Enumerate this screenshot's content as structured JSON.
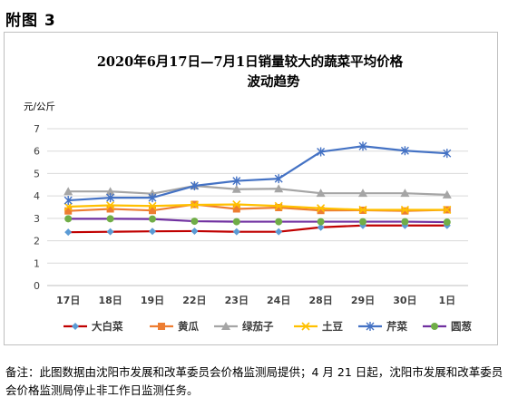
{
  "figure_label": "附图 3",
  "note": "备注：此图数据由沈阳市发展和改革委员会价格监测局提供；4 月 21 日起，沈阳市发展和改革委员会价格监测局停止非工作日监测任务。",
  "chart_data": {
    "type": "line",
    "title_line1": "2020年6月17日—7月1日销量较大的蔬菜平均价格",
    "title_line2": "波动趋势",
    "ylabel": "元/公斤",
    "xlabel": "",
    "ylim": [
      0,
      7
    ],
    "yticks": [
      "0",
      "1",
      "2",
      "3",
      "4",
      "5",
      "6",
      "7"
    ],
    "categories": [
      "17日",
      "18日",
      "19日",
      "22日",
      "23日",
      "24日",
      "28日",
      "29日",
      "30日",
      "1日"
    ],
    "grid": true,
    "legend_position": "bottom",
    "series": [
      {
        "name": "大白菜",
        "color": "#c00000",
        "marker": "diamond",
        "marker_color": "#5b9bd5",
        "values": [
          2.38,
          2.4,
          2.42,
          2.43,
          2.4,
          2.4,
          2.6,
          2.68,
          2.68,
          2.68
        ]
      },
      {
        "name": "黄瓜",
        "color": "#ed7d31",
        "marker": "square",
        "marker_color": "#ed7d31",
        "values": [
          3.33,
          3.42,
          3.35,
          3.62,
          3.42,
          3.48,
          3.35,
          3.36,
          3.33,
          3.38
        ]
      },
      {
        "name": "绿茄子",
        "color": "#a5a5a5",
        "marker": "triangle",
        "marker_color": "#a5a5a5",
        "values": [
          4.2,
          4.2,
          4.1,
          4.45,
          4.3,
          4.32,
          4.12,
          4.12,
          4.12,
          4.05
        ]
      },
      {
        "name": "土豆",
        "color": "#ffc000",
        "marker": "x",
        "marker_color": "#ffc000",
        "values": [
          3.52,
          3.58,
          3.55,
          3.6,
          3.62,
          3.55,
          3.45,
          3.38,
          3.38,
          3.38
        ]
      },
      {
        "name": "芹菜",
        "color": "#4472c4",
        "marker": "star",
        "marker_color": "#4472c4",
        "values": [
          3.8,
          3.92,
          3.92,
          4.45,
          4.67,
          4.77,
          5.97,
          6.22,
          6.02,
          5.9
        ]
      },
      {
        "name": "圆葱",
        "color": "#7030a0",
        "marker": "circle",
        "marker_color": "#70ad47",
        "values": [
          2.98,
          2.98,
          2.97,
          2.87,
          2.85,
          2.85,
          2.85,
          2.85,
          2.85,
          2.83
        ]
      }
    ]
  }
}
